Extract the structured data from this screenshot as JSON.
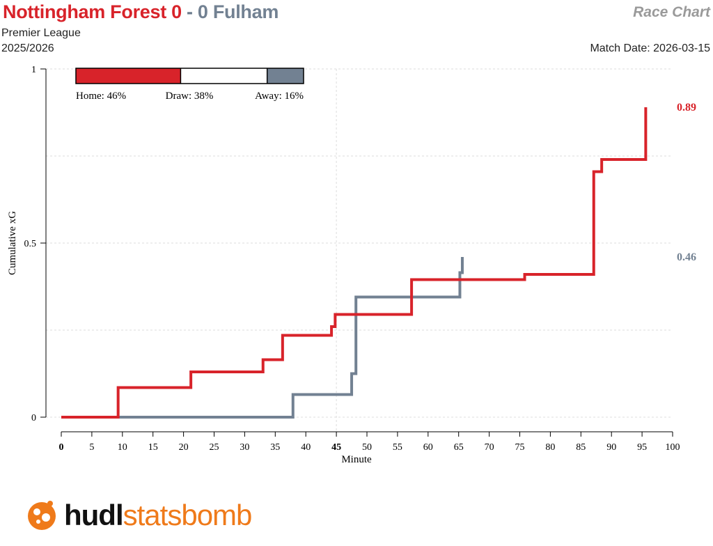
{
  "header": {
    "home_title": "Nottingham Forest 0",
    "separator": "-",
    "away_title": "0 Fulham",
    "competition": "Premier League",
    "season": "2025/2026",
    "chart_type": "Race Chart",
    "match_date": "Match Date: 2026-03-15"
  },
  "colors": {
    "home": "#d8232a",
    "away": "#728192",
    "logo": "#ef7a1a"
  },
  "probability_bar": {
    "home_label": "Home: 46%",
    "draw_label": "Draw: 38%",
    "away_label": "Away: 16%",
    "home": 0.46,
    "draw": 0.38,
    "away": 0.16
  },
  "chart_data": {
    "type": "line",
    "xlabel": "Minute",
    "ylabel": "Cumulative xG",
    "xlim": [
      0,
      100
    ],
    "ylim": [
      0,
      1
    ],
    "x_ticks": [
      0,
      5,
      10,
      15,
      20,
      25,
      30,
      35,
      40,
      45,
      50,
      55,
      60,
      65,
      70,
      75,
      80,
      85,
      90,
      95,
      100
    ],
    "y_ticks": [
      0,
      0.5,
      1
    ],
    "y_tick_labels": [
      "0",
      "0.5",
      "1"
    ],
    "bold_x_ticks": [
      0,
      45
    ],
    "series": [
      {
        "team": "home",
        "end_label": "0.89",
        "steps": [
          [
            0,
            0
          ],
          [
            9.3,
            0.085
          ],
          [
            21.2,
            0.13
          ],
          [
            33.0,
            0.165
          ],
          [
            36.2,
            0.235
          ],
          [
            44.2,
            0.26
          ],
          [
            44.8,
            0.295
          ],
          [
            57.3,
            0.395
          ],
          [
            75.8,
            0.41
          ],
          [
            87.1,
            0.705
          ],
          [
            88.4,
            0.74
          ],
          [
            95.6,
            0.89
          ]
        ],
        "end_x": 95.6
      },
      {
        "team": "away",
        "end_label": "0.46",
        "steps": [
          [
            0,
            0
          ],
          [
            37.9,
            0.065
          ],
          [
            47.5,
            0.125
          ],
          [
            48.2,
            0.345
          ],
          [
            65.2,
            0.415
          ],
          [
            65.6,
            0.46
          ]
        ],
        "end_x": 65.6
      }
    ]
  },
  "logo": {
    "brand_hudl": "hudl",
    "brand_sb": "statsbomb"
  }
}
